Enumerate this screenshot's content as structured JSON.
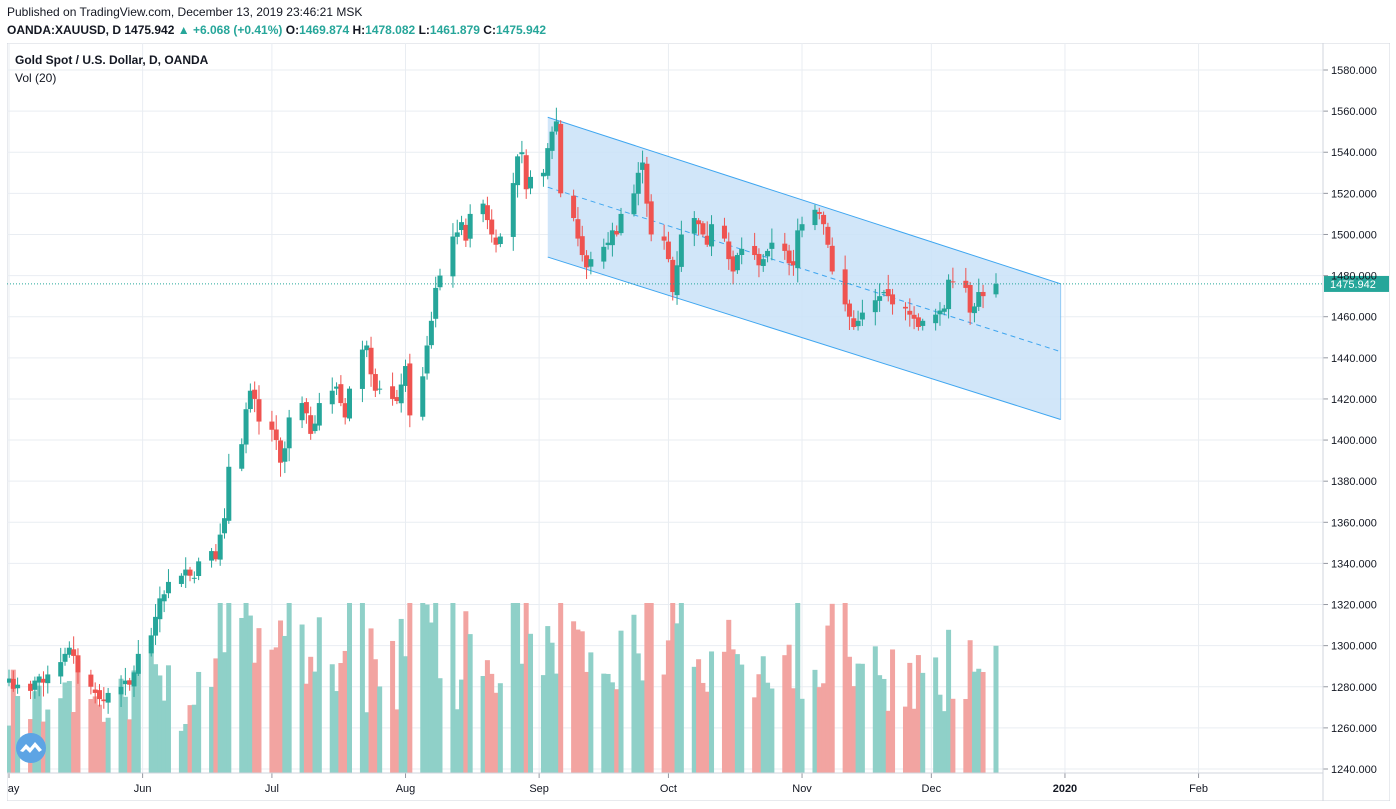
{
  "header": {
    "published": "Published on TradingView.com, December 13, 2019 23:46:21 MSK",
    "symbol": "OANDA:XAUUSD, D",
    "last": "1475.942",
    "change_arrow": "▲",
    "change": "+6.068 (+0.41%)",
    "open_label": "O:",
    "open": "1469.874",
    "high_label": "H:",
    "high": "1478.082",
    "low_label": "L:",
    "low": "1461.879",
    "close_label": "C:",
    "close": "1475.942"
  },
  "legend": {
    "title": "Gold Spot / U.S. Dollar, D, OANDA",
    "volume": "Vol (20)"
  },
  "colors": {
    "up": "#26a69a",
    "down": "#ef5350",
    "vol_up": "#8fd0c8",
    "vol_down": "#f2a4a1",
    "channel_fill": "#c9e2f8",
    "channel_line": "#3fa6f0",
    "grid": "#e9edf2",
    "price_line": "#26a69a"
  },
  "chart_data": {
    "type": "candlestick",
    "title": "Gold Spot / U.S. Dollar, D, OANDA",
    "y_axis": {
      "range": [
        1240,
        1590
      ],
      "ticks": [
        "1580.000",
        "1560.000",
        "1540.000",
        "1520.000",
        "1500.000",
        "1480.000",
        "1460.000",
        "1440.000",
        "1420.000",
        "1400.000",
        "1380.000",
        "1360.000",
        "1340.000",
        "1320.000",
        "1300.000",
        "1280.000",
        "1260.000",
        "1240.000"
      ]
    },
    "x_axis": {
      "range": [
        "2019-05-01",
        "2020-03-10"
      ],
      "ticks": [
        {
          "date": "2019-05-01",
          "label": "May"
        },
        {
          "date": "2019-06-01",
          "label": "Jun"
        },
        {
          "date": "2019-07-01",
          "label": "Jul"
        },
        {
          "date": "2019-08-01",
          "label": "Aug"
        },
        {
          "date": "2019-09-01",
          "label": "Sep"
        },
        {
          "date": "2019-10-01",
          "label": "Oct"
        },
        {
          "date": "2019-11-01",
          "label": "Nov"
        },
        {
          "date": "2019-12-01",
          "label": "Dec"
        },
        {
          "date": "2020-01-01",
          "label": "2020"
        },
        {
          "date": "2020-02-01",
          "label": "Feb"
        }
      ]
    },
    "grid": true,
    "last_price": "1475.942",
    "last_price_value": 1475.942,
    "close_series": {
      "description_dates_start": "2019-05-01",
      "closes": [
        1284,
        1279,
        1281,
        1278,
        1283,
        1285,
        1282,
        1286,
        1292,
        1296,
        1299,
        1295,
        1287,
        1280,
        1277,
        1274,
        1273,
        1277,
        1280,
        1283,
        1281,
        1287,
        1296,
        1305,
        1314,
        1323,
        1325,
        1331,
        1334,
        1337,
        1334,
        1333,
        1341,
        1346,
        1342,
        1354,
        1362,
        1387,
        1398,
        1415,
        1424,
        1420,
        1409,
        1405,
        1400,
        1389,
        1396,
        1411,
        1418,
        1413,
        1403,
        1408,
        1418,
        1424,
        1426,
        1418,
        1411,
        1425,
        1444,
        1446,
        1432,
        1424,
        1425,
        1420,
        1419,
        1427,
        1436,
        1412,
        1431,
        1446,
        1458,
        1474,
        1480,
        1499,
        1501,
        1506,
        1497,
        1510,
        1515,
        1507,
        1500,
        1495,
        1499,
        1525,
        1538,
        1540,
        1522,
        1528,
        1530,
        1542,
        1550,
        1555,
        1520,
        1508,
        1498,
        1490,
        1484,
        1488,
        1494,
        1496,
        1502,
        1500,
        1510,
        1520,
        1530,
        1535,
        1515,
        1500,
        1497,
        1488,
        1472,
        1485,
        1500,
        1508,
        1505,
        1500,
        1495,
        1505,
        1498,
        1488,
        1482,
        1490,
        1493,
        1490,
        1485,
        1488,
        1492,
        1496,
        1492,
        1486,
        1485,
        1502,
        1505,
        1512,
        1510,
        1505,
        1495,
        1482,
        1466,
        1460,
        1455,
        1458,
        1462,
        1468,
        1470,
        1472,
        1470,
        1466,
        1464,
        1461,
        1459,
        1455,
        1458,
        1461,
        1463,
        1464,
        1478,
        1477,
        1474,
        1462,
        1465,
        1472,
        1470,
        1476
      ]
    },
    "volume": {
      "label": "Vol (20)"
    },
    "channel": {
      "type": "regression_trend",
      "start_date": "2019-09-03",
      "end_date": "2019-12-31",
      "upper": [
        1557,
        1476
      ],
      "mid": [
        1523,
        1443
      ],
      "lower": [
        1489,
        1410
      ]
    }
  }
}
